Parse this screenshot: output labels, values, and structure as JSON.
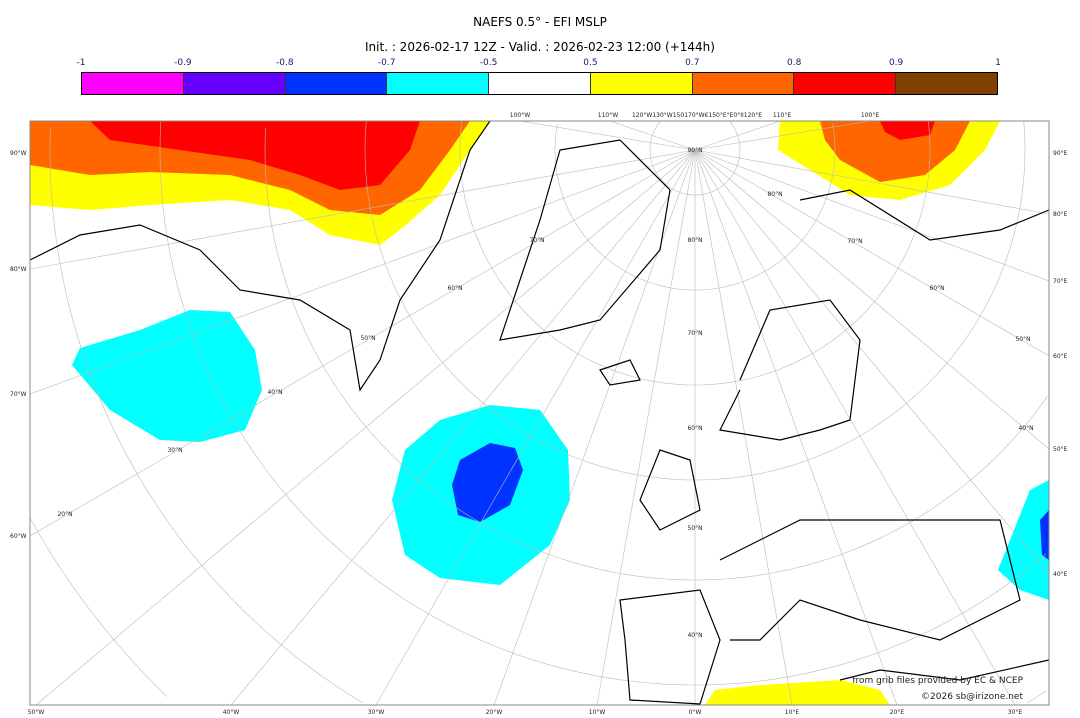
{
  "title": "NAEFS 0.5° - EFI MSLP",
  "subtitle": "Init. : 2026-02-17 12Z - Valid. : 2026-02-23 12:00 (+144h)",
  "colorbar": {
    "ticks": [
      "-1",
      "-0.9",
      "-0.8",
      "-0.7",
      "-0.5",
      "0.5",
      "0.7",
      "0.8",
      "0.9",
      "1"
    ],
    "colors": [
      "#ff00ff",
      "#6600ff",
      "#0033ff",
      "#00ffff",
      "#ffffff",
      "#ffff00",
      "#ff6600",
      "#ff0000",
      "#804000"
    ]
  },
  "axes": {
    "top": [
      "100°W",
      "110°W",
      "120°W130°W150170°W€150°E°E0°II120°E",
      "110°E",
      "100°E"
    ],
    "left": [
      "90°W",
      "80°W",
      "70°W",
      "60°W"
    ],
    "right": [
      "90°E",
      "80°E",
      "70°E",
      "60°E",
      "50°E",
      "40°E"
    ],
    "bottom": [
      "50°W",
      "40°W",
      "30°W",
      "20°W",
      "10°W",
      "0°W",
      "10°E",
      "20°E",
      "30°E"
    ],
    "interior": [
      "90°N",
      "80°N",
      "70°N",
      "60°N",
      "50°N",
      "40°N",
      "30°N",
      "20°N",
      "80°N",
      "70°N",
      "60°N",
      "50°N",
      "40°N",
      "70°N",
      "60°N",
      "50°N",
      "40°N"
    ]
  },
  "credits": {
    "source": "from grib files provided by EC & NCEP",
    "copyright": "©2026 sb@irizone.net"
  }
}
